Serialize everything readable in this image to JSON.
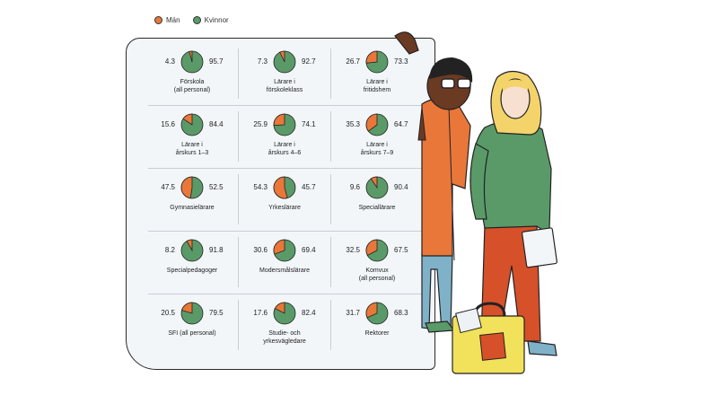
{
  "legend": {
    "men_label": "Män",
    "women_label": "Kvinnor",
    "men_color": "#e9773a",
    "women_color": "#5a9a68"
  },
  "chart_data": {
    "type": "pie",
    "series_names": [
      "Män",
      "Kvinnor"
    ],
    "colors": [
      "#e9773a",
      "#5a9a68"
    ],
    "items": [
      {
        "label": "Förskola\n(all personal)",
        "men": 4.3,
        "women": 95.7
      },
      {
        "label": "Lärare i\nförskoleklass",
        "men": 7.3,
        "women": 92.7
      },
      {
        "label": "Lärare i\nfritidshem",
        "men": 26.7,
        "women": 73.3
      },
      {
        "label": "Lärare i\nårskurs 1–3",
        "men": 15.6,
        "women": 84.4
      },
      {
        "label": "Lärare i\nårskurs 4–6",
        "men": 25.9,
        "women": 74.1
      },
      {
        "label": "Lärare i\nårskurs 7–9",
        "men": 35.3,
        "women": 64.7
      },
      {
        "label": "Gymnasielärare",
        "men": 47.5,
        "women": 52.5
      },
      {
        "label": "Yrkeslärare",
        "men": 54.3,
        "women": 45.7
      },
      {
        "label": "Speciallärare",
        "men": 9.6,
        "women": 90.4
      },
      {
        "label": "Specialpedagoger",
        "men": 8.2,
        "women": 91.8
      },
      {
        "label": "Modersmålslärare",
        "men": 30.6,
        "women": 69.4
      },
      {
        "label": "Komvux\n(all personal)",
        "men": 32.5,
        "women": 67.5
      },
      {
        "label": "SFI (all personal)",
        "men": 20.5,
        "women": 79.5
      },
      {
        "label": "Studie- och\nyrkesvägledare",
        "men": 17.6,
        "women": 82.4
      },
      {
        "label": "Rektorer",
        "men": 31.7,
        "women": 68.3
      }
    ]
  }
}
